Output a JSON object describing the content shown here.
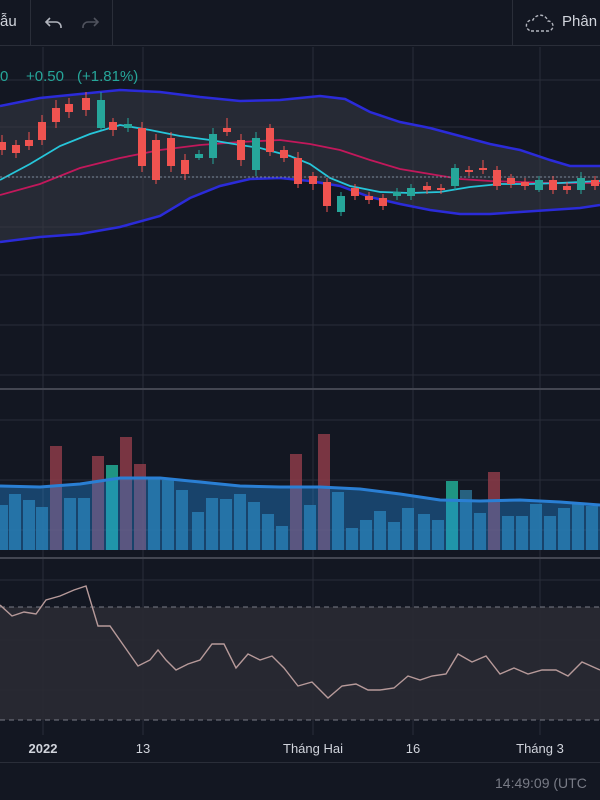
{
  "toolbar": {
    "left_label": "ẫu",
    "undo_icon": "undo-icon",
    "redo_icon": "redo-icon",
    "cloud_icon": "cloud-icon",
    "right_label": "Phân"
  },
  "legend": {
    "price_fragment": "0",
    "change": "+0.50",
    "change_pct": "(+1.81%)"
  },
  "x_axis": {
    "labels": [
      "2022",
      "13",
      "Tháng Hai",
      "16",
      "Tháng 3"
    ]
  },
  "status": {
    "time": "14:49:09 (UTC"
  },
  "colors": {
    "background": "#131722",
    "up": "#26a69a",
    "down": "#ef5350",
    "bollinger_band": "#2b2bd9",
    "bollinger_mid": "#c2185b",
    "ma_line": "#26c6da",
    "volume_up": "#22ab94",
    "volume_ma": "#2196f3",
    "rsi_line": "#b79a9a"
  }
}
